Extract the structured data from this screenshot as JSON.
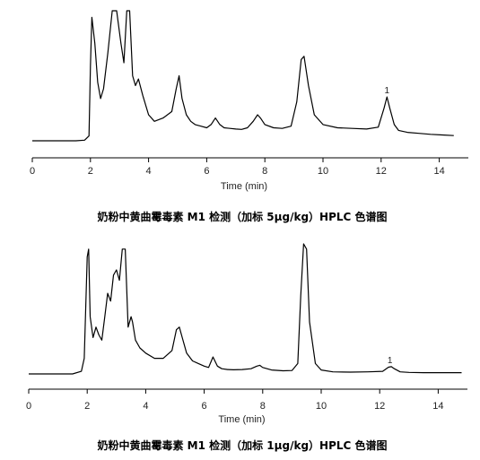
{
  "chart_data": [
    {
      "type": "line",
      "xlabel": "Time (min)",
      "caption": "奶粉中黄曲霉毒素 M1 检测（加标 5μg/kg）HPLC 色谱图",
      "xlim": [
        0,
        15
      ],
      "xticks": [
        0,
        2,
        4,
        6,
        8,
        10,
        12,
        14
      ],
      "annotations": [
        {
          "text": "1",
          "x": 12.2
        }
      ],
      "series": [
        {
          "x": [
            0.0,
            1.5,
            1.8,
            1.95,
            2.0,
            2.05,
            2.15,
            2.25,
            2.35,
            2.45,
            2.6,
            2.75,
            2.9,
            3.05,
            3.15,
            3.25,
            3.35,
            3.45,
            3.55,
            3.65,
            3.8,
            4.0,
            4.2,
            4.5,
            4.8,
            4.95,
            5.05,
            5.15,
            5.3,
            5.45,
            5.6,
            5.8,
            6.0,
            6.15,
            6.3,
            6.45,
            6.6,
            6.8,
            7.0,
            7.2,
            7.4,
            7.6,
            7.75,
            7.85,
            8.0,
            8.3,
            8.6,
            8.9,
            9.1,
            9.25,
            9.35,
            9.5,
            9.7,
            10.0,
            10.5,
            11.0,
            11.5,
            11.9,
            12.1,
            12.2,
            12.3,
            12.45,
            12.6,
            12.9,
            13.3,
            13.7,
            14.1,
            14.5
          ],
          "y": [
            0.0,
            0.0,
            0.2,
            1.5,
            23,
            38,
            30,
            18,
            13,
            16,
            27,
            40,
            40,
            30,
            24,
            40,
            40,
            20,
            17,
            19,
            14,
            8,
            6,
            7,
            9,
            16,
            20,
            13,
            8,
            6,
            5,
            4.5,
            4,
            5,
            7,
            5,
            4,
            3.8,
            3.6,
            3.5,
            4,
            6,
            8,
            7,
            5,
            4,
            3.8,
            4.5,
            12,
            25,
            26,
            17,
            8,
            5,
            4,
            3.8,
            3.6,
            4.2,
            10,
            13.5,
            10,
            5,
            3.2,
            2.6,
            2.3,
            2.0,
            1.8,
            1.6
          ]
        }
      ]
    },
    {
      "type": "line",
      "xlabel": "Time (min)",
      "caption": "奶粉中黄曲霉毒素 M1 检测（加标 1μg/kg）HPLC 色谱图",
      "xlim": [
        0,
        15
      ],
      "xticks": [
        0,
        2,
        4,
        6,
        8,
        10,
        12,
        14
      ],
      "annotations": [
        {
          "text": "1",
          "x": 12.35
        }
      ],
      "series": [
        {
          "x": [
            0.0,
            1.5,
            1.8,
            1.9,
            2.0,
            2.05,
            2.1,
            2.2,
            2.3,
            2.4,
            2.5,
            2.6,
            2.7,
            2.8,
            2.9,
            3.0,
            3.1,
            3.2,
            3.3,
            3.4,
            3.5,
            3.55,
            3.65,
            3.8,
            4.0,
            4.3,
            4.6,
            4.9,
            5.05,
            5.15,
            5.25,
            5.4,
            5.6,
            5.8,
            6.0,
            6.15,
            6.3,
            6.45,
            6.6,
            6.8,
            7.0,
            7.3,
            7.6,
            7.8,
            7.9,
            8.0,
            8.3,
            8.7,
            9.0,
            9.2,
            9.3,
            9.4,
            9.5,
            9.6,
            9.8,
            10.0,
            10.4,
            11.0,
            11.6,
            12.1,
            12.3,
            12.4,
            12.5,
            12.7,
            13.0,
            13.5,
            14.0,
            14.5,
            14.8
          ],
          "y": [
            0.0,
            0.0,
            1,
            6,
            45,
            48,
            22,
            14,
            18,
            15,
            13,
            22,
            31,
            28,
            38,
            40,
            36,
            48,
            48,
            18,
            22,
            20,
            13,
            10,
            8,
            6,
            6,
            9,
            17,
            18,
            14,
            8,
            5,
            4,
            3,
            2.5,
            6.5,
            3,
            2,
            1.7,
            1.6,
            1.7,
            2,
            3,
            3.3,
            2.5,
            1.5,
            1.2,
            1.3,
            4,
            30,
            50,
            48,
            20,
            4,
            1.5,
            0.8,
            0.7,
            0.8,
            1.0,
            2.6,
            2.8,
            2.0,
            0.8,
            0.6,
            0.5,
            0.5,
            0.5,
            0.5
          ]
        }
      ]
    }
  ]
}
